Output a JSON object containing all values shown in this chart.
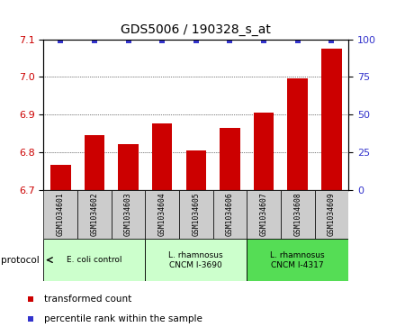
{
  "title": "GDS5006 / 190328_s_at",
  "samples": [
    "GSM1034601",
    "GSM1034602",
    "GSM1034603",
    "GSM1034604",
    "GSM1034605",
    "GSM1034606",
    "GSM1034607",
    "GSM1034608",
    "GSM1034609"
  ],
  "bar_values": [
    6.765,
    6.845,
    6.82,
    6.875,
    6.805,
    6.865,
    6.905,
    6.995,
    7.075
  ],
  "percentile_values": [
    99,
    99,
    99,
    99,
    99,
    99,
    99,
    99,
    99
  ],
  "ylim_left": [
    6.7,
    7.1
  ],
  "ylim_right": [
    0,
    100
  ],
  "yticks_left": [
    6.7,
    6.8,
    6.9,
    7.0,
    7.1
  ],
  "yticks_right": [
    0,
    25,
    50,
    75,
    100
  ],
  "bar_color": "#cc0000",
  "percentile_color": "#3333cc",
  "bar_bottom": 6.7,
  "protocols": [
    {
      "label": "E. coli control",
      "start": 0,
      "end": 3,
      "color": "#ccffcc"
    },
    {
      "label": "L. rhamnosus\nCNCM I-3690",
      "start": 3,
      "end": 6,
      "color": "#ccffcc"
    },
    {
      "label": "L. rhamnosus\nCNCM I-4317",
      "start": 6,
      "end": 9,
      "color": "#55dd55"
    }
  ],
  "legend_items": [
    {
      "label": "transformed count",
      "color": "#cc0000"
    },
    {
      "label": "percentile rank within the sample",
      "color": "#3333cc"
    }
  ],
  "protocol_label": "protocol",
  "grid_color": "#555555",
  "bg_color_plot": "#ffffff",
  "bg_color_labels": "#cccccc"
}
